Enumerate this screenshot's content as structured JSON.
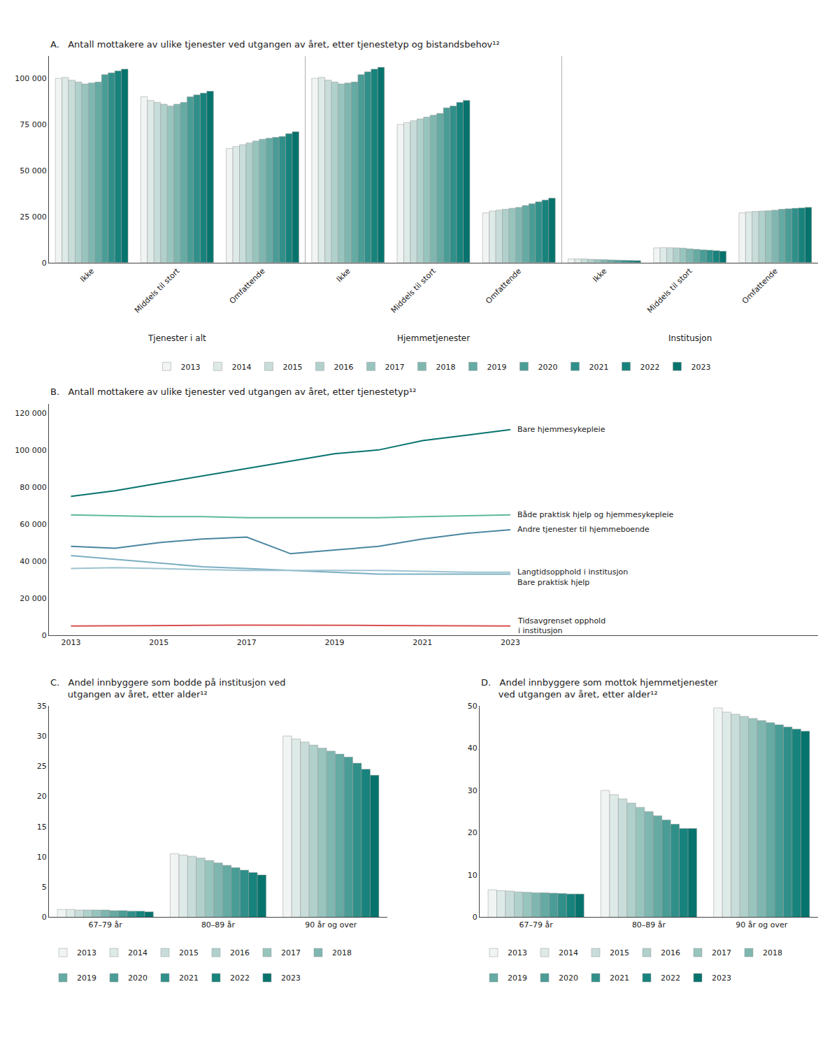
{
  "chart_data": [
    {
      "type": "bar",
      "title": "A.   Antall mottakere av ulike tjenester ved utgangen av året, etter tjenestetyp og bistandsbehov¹²",
      "categories": [
        "Ikke",
        "Middels til stort",
        "Omfattende",
        "Ikke",
        "Middels til stort",
        "Omfattende",
        "Ikke",
        "Middels til stort",
        "Omfattende"
      ],
      "annotations": [
        "Tjenester i alt",
        "Hjemmetjenester",
        "Institusjon"
      ],
      "series": [
        {
          "name": "2013",
          "color": "#f0f4f3",
          "values": [
            100000,
            90000,
            62000,
            100000,
            75000,
            27000,
            2000,
            8000,
            27000
          ]
        },
        {
          "name": "2014",
          "color": "#ddeae7",
          "values": [
            100500,
            88000,
            63000,
            100500,
            76000,
            28000,
            2000,
            8200,
            27500
          ]
        },
        {
          "name": "2015",
          "color": "#c8ddd9",
          "values": [
            99000,
            87000,
            64000,
            99000,
            77000,
            28500,
            2000,
            8100,
            27800
          ]
        },
        {
          "name": "2016",
          "color": "#b0d0cb",
          "values": [
            98000,
            86000,
            65000,
            98000,
            78000,
            29000,
            1800,
            8000,
            28000
          ]
        },
        {
          "name": "2017",
          "color": "#98c4be",
          "values": [
            97000,
            85000,
            66000,
            97000,
            79000,
            29500,
            1700,
            7900,
            28200
          ]
        },
        {
          "name": "2018",
          "color": "#7fb7b0",
          "values": [
            97500,
            86000,
            67000,
            97500,
            80000,
            30000,
            1600,
            7500,
            28500
          ]
        },
        {
          "name": "2019",
          "color": "#65aaa3",
          "values": [
            98000,
            87000,
            67500,
            98000,
            81000,
            31000,
            1500,
            7200,
            29000
          ]
        },
        {
          "name": "2020",
          "color": "#4a9d96",
          "values": [
            102000,
            90000,
            68000,
            102000,
            84000,
            32000,
            1400,
            7000,
            29200
          ]
        },
        {
          "name": "2021",
          "color": "#309089",
          "values": [
            103000,
            91000,
            68500,
            103500,
            85000,
            33000,
            1300,
            6800,
            29500
          ]
        },
        {
          "name": "2022",
          "color": "#17837c",
          "values": [
            104000,
            92000,
            70000,
            105000,
            87000,
            34000,
            1200,
            6500,
            29700
          ]
        },
        {
          "name": "2023",
          "color": "#07736d",
          "values": [
            105000,
            93000,
            71000,
            106000,
            88000,
            35000,
            1100,
            6200,
            30000
          ]
        }
      ],
      "ylim": [
        0,
        112000
      ],
      "yticks": [
        0,
        {
          "value": 25000,
          "label": "25 000"
        },
        {
          "value": 50000,
          "label": "50 000"
        },
        {
          "value": 75000,
          "label": "75 000"
        },
        {
          "value": 100000,
          "label": "100 000"
        }
      ],
      "grid": false,
      "legend": "bottom"
    },
    {
      "type": "line",
      "title": "B.   Antall mottakere av ulike tjenester ved utgangen av året, etter tjenestetyp¹²",
      "x": [
        2013,
        2014,
        2015,
        2016,
        2017,
        2018,
        2019,
        2020,
        2021,
        2022,
        2023
      ],
      "series": [
        {
          "name": "Bare hjemmesykepleie",
          "color": "#07736d",
          "values": [
            75000,
            78000,
            82000,
            86000,
            90000,
            94000,
            98000,
            100000,
            105000,
            108000,
            111000
          ]
        },
        {
          "name": "Både praktisk hjelp og hjemmesykepleie",
          "color": "#5db89e",
          "values": [
            65000,
            64500,
            64000,
            64000,
            63500,
            63500,
            63500,
            63500,
            64000,
            64500,
            65000
          ]
        },
        {
          "name": "Andre tjenester til hjemmeboende",
          "color": "#4a86a0",
          "values": [
            48000,
            47000,
            50000,
            52000,
            53000,
            44000,
            46000,
            48000,
            52000,
            55000,
            57000
          ]
        },
        {
          "name": "Bare praktisk hjelp",
          "color": "#7aafc2",
          "values": [
            43000,
            41000,
            39000,
            37000,
            36000,
            35000,
            34000,
            33000,
            33000,
            33000,
            33000
          ]
        },
        {
          "name": "Langtidsopphold i institusjon",
          "color": "#9ec3d0",
          "values": [
            36000,
            36500,
            36000,
            35500,
            35000,
            35000,
            35000,
            35000,
            34500,
            34000,
            34000
          ]
        },
        {
          "name": "Tidsavgrenset opphold\ni institusjon",
          "color": "#d94f4f",
          "values": [
            5000,
            5200,
            5300,
            5400,
            5500,
            5500,
            5400,
            5300,
            5200,
            5100,
            5000
          ]
        }
      ],
      "xlim": [
        2012.5,
        2030
      ],
      "xticks": [
        2013,
        2015,
        2017,
        2019,
        2021,
        2023
      ],
      "ylim": [
        0,
        125000
      ],
      "yticks": [
        0,
        {
          "value": 20000,
          "label": "20 000"
        },
        {
          "value": 40000,
          "label": "40 000"
        },
        {
          "value": 60000,
          "label": "60 000"
        },
        {
          "value": 80000,
          "label": "80 000"
        },
        {
          "value": 100000,
          "label": "100 000"
        },
        {
          "value": 120000,
          "label": "120 000"
        }
      ],
      "grid": false
    },
    {
      "type": "bar",
      "title": "C.   Andel innbyggere som bodde på institusjon ved\n      utgangen av året, etter alder¹²",
      "categories": [
        "67–79 år",
        "80–89 år",
        "90 år og over"
      ],
      "series": [
        {
          "name": "2013",
          "color": "#f0f4f3",
          "values": [
            1.3,
            10.5,
            30.0
          ]
        },
        {
          "name": "2014",
          "color": "#ddeae7",
          "values": [
            1.3,
            10.3,
            29.5
          ]
        },
        {
          "name": "2015",
          "color": "#c8ddd9",
          "values": [
            1.2,
            10.1,
            29.0
          ]
        },
        {
          "name": "2016",
          "color": "#b0d0cb",
          "values": [
            1.2,
            9.8,
            28.5
          ]
        },
        {
          "name": "2017",
          "color": "#98c4be",
          "values": [
            1.2,
            9.4,
            28.0
          ]
        },
        {
          "name": "2018",
          "color": "#7fb7b0",
          "values": [
            1.2,
            9.0,
            27.5
          ]
        },
        {
          "name": "2019",
          "color": "#65aaa3",
          "values": [
            1.1,
            8.6,
            27.0
          ]
        },
        {
          "name": "2020",
          "color": "#4a9d96",
          "values": [
            1.1,
            8.2,
            26.5
          ]
        },
        {
          "name": "2021",
          "color": "#309089",
          "values": [
            1.0,
            7.8,
            25.5
          ]
        },
        {
          "name": "2022",
          "color": "#17837c",
          "values": [
            1.0,
            7.4,
            24.5
          ]
        },
        {
          "name": "2023",
          "color": "#07736d",
          "values": [
            0.9,
            7.0,
            23.5
          ]
        }
      ],
      "ylim": [
        0,
        35
      ],
      "yticks": [
        0,
        5,
        10,
        15,
        20,
        25,
        30,
        35
      ],
      "grid": false,
      "legend": "bottom"
    },
    {
      "type": "bar",
      "title": "D.   Andel innbyggere som mottok hjemmetjenester\n      ved utgangen av året, etter alder¹²",
      "categories": [
        "67–79 år",
        "80–89 år",
        "90 år og over"
      ],
      "series": [
        {
          "name": "2013",
          "color": "#f0f4f3",
          "values": [
            6.5,
            30.0,
            49.5
          ]
        },
        {
          "name": "2014",
          "color": "#ddeae7",
          "values": [
            6.3,
            29.0,
            48.5
          ]
        },
        {
          "name": "2015",
          "color": "#c8ddd9",
          "values": [
            6.2,
            28.0,
            48.0
          ]
        },
        {
          "name": "2016",
          "color": "#b0d0cb",
          "values": [
            6.0,
            27.0,
            47.5
          ]
        },
        {
          "name": "2017",
          "color": "#98c4be",
          "values": [
            5.9,
            26.0,
            47.0
          ]
        },
        {
          "name": "2018",
          "color": "#7fb7b0",
          "values": [
            5.8,
            25.0,
            46.5
          ]
        },
        {
          "name": "2019",
          "color": "#65aaa3",
          "values": [
            5.8,
            24.0,
            46.0
          ]
        },
        {
          "name": "2020",
          "color": "#4a9d96",
          "values": [
            5.7,
            23.0,
            45.5
          ]
        },
        {
          "name": "2021",
          "color": "#309089",
          "values": [
            5.6,
            22.0,
            45.0
          ]
        },
        {
          "name": "2022",
          "color": "#17837c",
          "values": [
            5.5,
            21.0,
            44.5
          ]
        },
        {
          "name": "2023",
          "color": "#07736d",
          "values": [
            5.5,
            21.0,
            44.0
          ]
        }
      ],
      "ylim": [
        0,
        50
      ],
      "yticks": [
        0,
        10,
        20,
        30,
        40,
        50
      ],
      "grid": false,
      "legend": "bottom"
    }
  ]
}
